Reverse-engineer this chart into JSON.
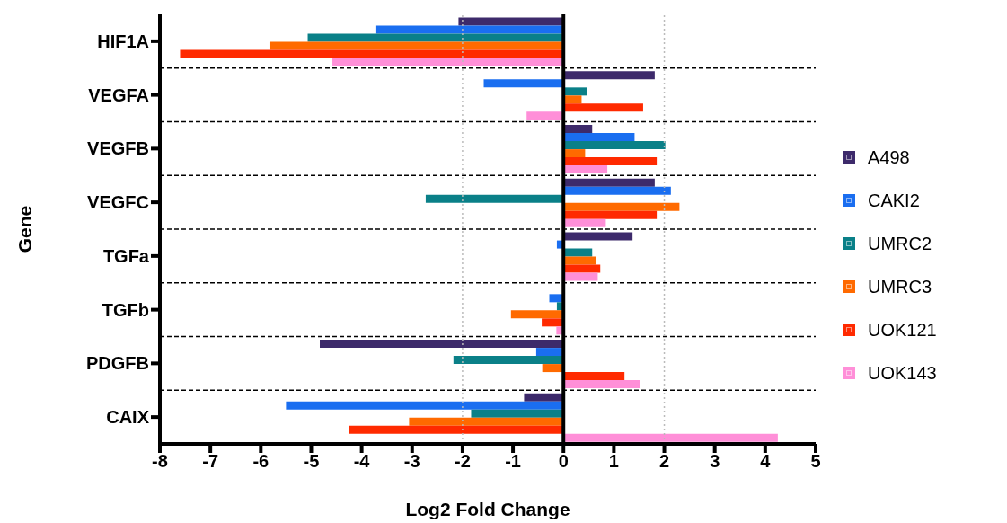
{
  "chart_data": {
    "type": "bar",
    "orientation": "horizontal",
    "xlabel": "Log2 Fold Change",
    "ylabel": "Gene",
    "categories": [
      "HIF1A",
      "VEGFA",
      "VEGFB",
      "VEGFC",
      "TGFa",
      "TGFb",
      "PDGFB",
      "CAIX"
    ],
    "series": [
      {
        "name": "A498",
        "color": "#3d2a6b",
        "values": [
          -2.08,
          1.81,
          0.57,
          1.81,
          1.37,
          null,
          -4.83,
          -0.78
        ]
      },
      {
        "name": "CAKI2",
        "color": "#1a6ef0",
        "values": [
          -3.71,
          -1.58,
          1.41,
          2.13,
          -0.13,
          -0.28,
          -0.54,
          -5.5
        ]
      },
      {
        "name": "UMRC2",
        "color": "#0a8088",
        "values": [
          -5.07,
          0.46,
          2.02,
          -2.73,
          0.57,
          -0.13,
          -2.18,
          -1.83
        ]
      },
      {
        "name": "UMRC3",
        "color": "#ff6a00",
        "values": [
          -5.81,
          0.36,
          0.43,
          2.3,
          0.64,
          -1.04,
          -0.42,
          -3.06
        ]
      },
      {
        "name": "UOK121",
        "color": "#ff2a00",
        "values": [
          -7.6,
          1.58,
          1.85,
          1.85,
          0.73,
          -0.43,
          1.21,
          -4.25
        ]
      },
      {
        "name": "UOK143",
        "color": "#ff8fd8",
        "values": [
          -4.58,
          -0.73,
          0.87,
          0.84,
          0.68,
          -0.14,
          1.52,
          4.25
        ]
      }
    ],
    "xlim": [
      -8,
      5
    ],
    "xticks": [
      -8,
      -7,
      -6,
      -5,
      -4,
      -3,
      -2,
      -1,
      0,
      1,
      2,
      3,
      4,
      5
    ],
    "grid": "y",
    "legend": "right",
    "ref_lines": [
      {
        "axis": "x",
        "value": -2,
        "line_style": "dotted",
        "color": "#bbbbbb"
      },
      {
        "axis": "x",
        "value": 2,
        "line_style": "dotted",
        "color": "#bbbbbb"
      },
      {
        "axis": "x",
        "value": 0,
        "line_style": "solid",
        "color": "#000000"
      }
    ]
  }
}
